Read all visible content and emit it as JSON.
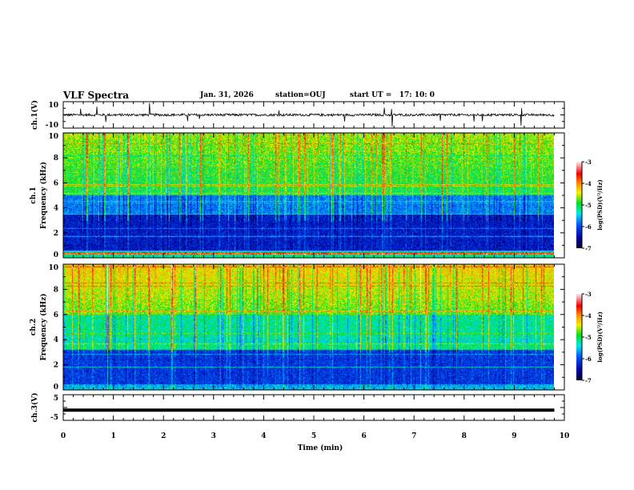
{
  "header": {
    "title": "VLF Spectra",
    "date": "Jan. 31, 2026",
    "station": "station=OUJ",
    "start": "start UT =   17: 10: 0"
  },
  "chart_data": [
    {
      "type": "line",
      "name": "ch1-waveform",
      "ylabel": "ch.1(V)",
      "ylim": [
        -10,
        10
      ],
      "yticks": [
        "10",
        "-10"
      ],
      "baseline_value": 0,
      "description_values": {
        "typical_amplitude": 1,
        "max_spike": 9
      }
    },
    {
      "type": "heatmap",
      "name": "ch1-spectrogram",
      "ylabel": [
        "ch.1",
        "Frequency (kHz)"
      ],
      "ylim": [
        0,
        10
      ],
      "yticks": [
        "0",
        "2",
        "4",
        "6",
        "8",
        "10"
      ],
      "colorbar": {
        "label": "log(PSD)(V²/Hz)",
        "range": [
          -7,
          -3
        ],
        "ticks": [
          "-3",
          "-4",
          "-5",
          "-6",
          "-7"
        ]
      }
    },
    {
      "type": "heatmap",
      "name": "ch2-spectrogram",
      "ylabel": [
        "ch.2",
        "Frequency (kHz)"
      ],
      "ylim": [
        0,
        10
      ],
      "yticks": [
        "0",
        "2",
        "4",
        "6",
        "8",
        "10"
      ],
      "colorbar": {
        "label": "log(PSD)(V²/Hz)",
        "range": [
          -7,
          -3
        ],
        "ticks": [
          "-3",
          "-4",
          "-5",
          "-6",
          "-7"
        ]
      }
    },
    {
      "type": "line",
      "name": "ch3-waveform",
      "ylabel": "ch.3(V)",
      "ylim": [
        -5,
        5
      ],
      "yticks": [
        "5",
        "-5"
      ],
      "baseline_value": -1
    }
  ],
  "xaxis": {
    "label": "Time (min)",
    "xlim": [
      0,
      10
    ],
    "data_end": 9.8,
    "ticks": [
      "0",
      "1",
      "2",
      "3",
      "4",
      "5",
      "6",
      "7",
      "8",
      "9",
      "10"
    ]
  },
  "colors": {
    "axis": "#000000",
    "background": "#ffffff"
  }
}
